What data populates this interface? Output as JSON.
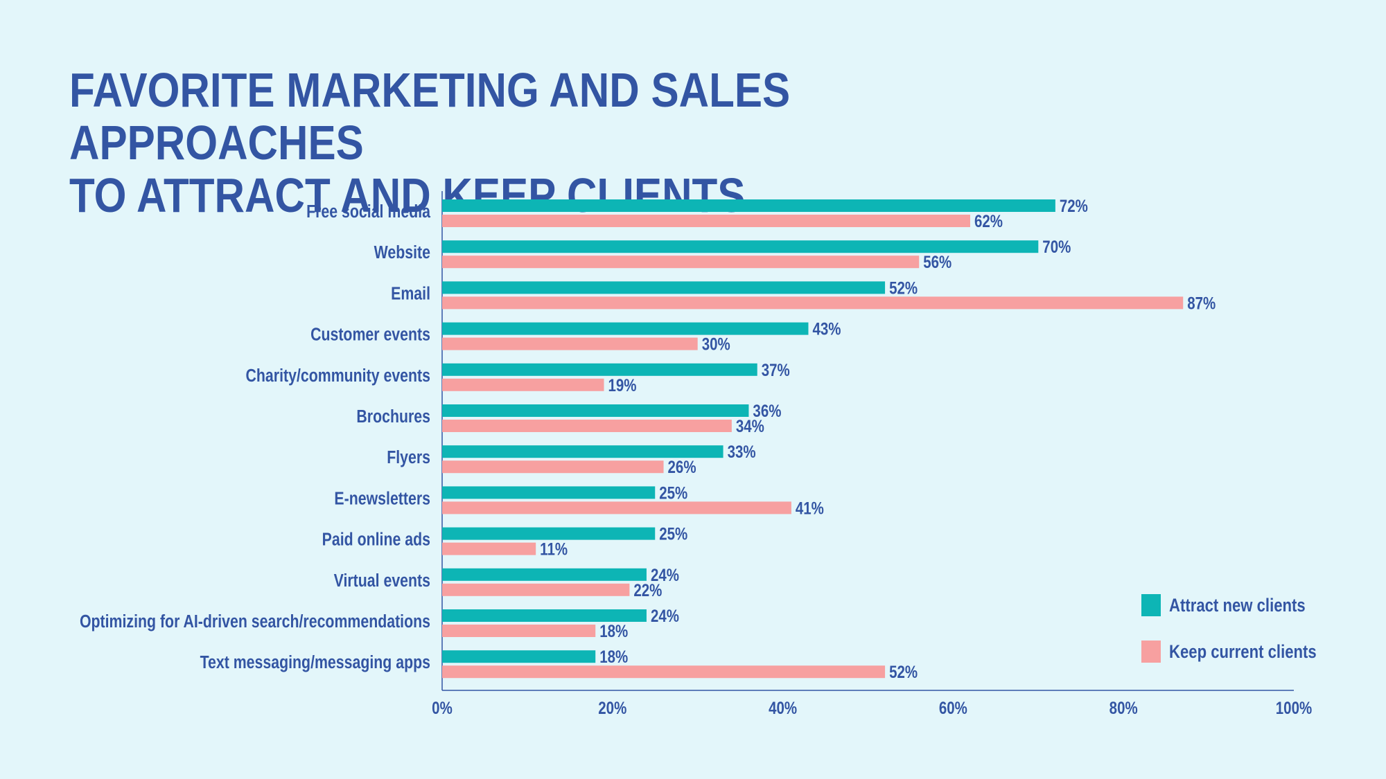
{
  "title": {
    "line1": "FAVORITE MARKETING AND SALES APPROACHES",
    "line2": "TO ATTRACT AND KEEP CLIENTS"
  },
  "colors": {
    "attract": "#0db5b5",
    "keep": "#f7a0a0",
    "text": "#3355a3",
    "axis": "#3355a3",
    "background": "#e3f6fa"
  },
  "chart_data": {
    "type": "bar",
    "orientation": "horizontal",
    "categories": [
      "Free social media",
      "Website",
      "Email",
      "Customer events",
      "Charity/community events",
      "Brochures",
      "Flyers",
      "E-newsletters",
      "Paid online ads",
      "Virtual events",
      "Optimizing for AI-driven search/recommendations",
      "Text messaging/messaging apps"
    ],
    "series": [
      {
        "name": "Attract new clients",
        "values": [
          72,
          70,
          52,
          43,
          37,
          36,
          33,
          25,
          25,
          24,
          24,
          18
        ],
        "labels": [
          "72%",
          "70%",
          "52%",
          "43%",
          "37%",
          "36%",
          "33%",
          "25%",
          "25%",
          "24%",
          "24%",
          "18%"
        ]
      },
      {
        "name": "Keep current clients",
        "values": [
          62,
          56,
          87,
          30,
          19,
          34,
          26,
          41,
          11,
          22,
          18,
          52
        ],
        "labels": [
          "62%",
          "56%",
          "87%",
          "30%",
          "19%",
          "34%",
          "26%",
          "41%",
          "11%",
          "22%",
          "18%",
          "52%"
        ]
      }
    ],
    "xlim": [
      0,
      100
    ],
    "xticks": [
      "0%",
      "20%",
      "40%",
      "60%",
      "80%",
      "100%"
    ],
    "grid": false,
    "legend_position": "bottom-right"
  }
}
